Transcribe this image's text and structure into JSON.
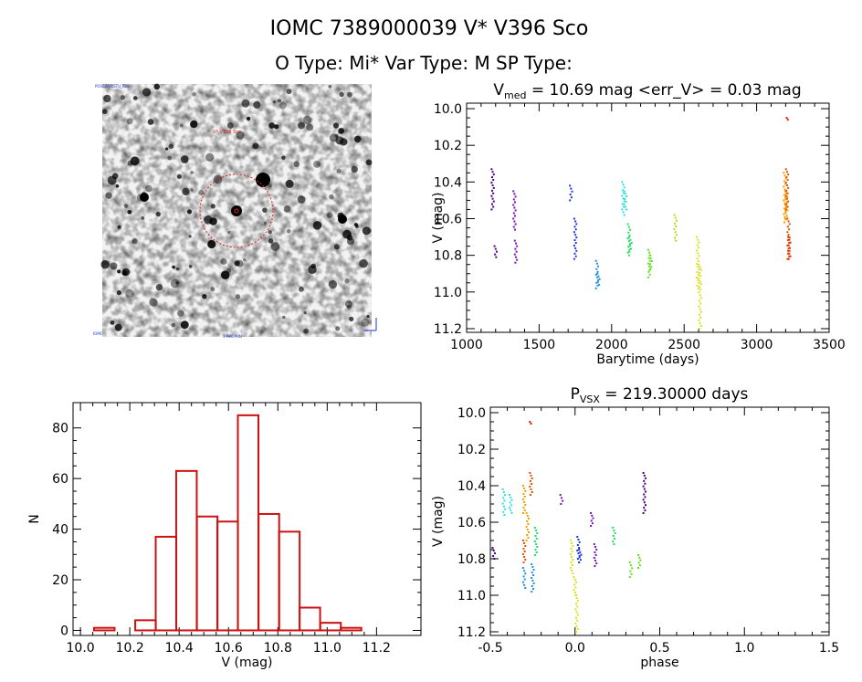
{
  "header": {
    "title_line1": "IOMC 7389000039    V* V396 Sco",
    "title_line2": "O Type: Mi*  Var Type: M  SP Type:"
  },
  "image_panel": {
    "labels": [
      "POSS2/UKSTU_Red",
      "V* V396 Sco",
      "IOMC",
      "1 ARC MIN"
    ]
  },
  "chart_data": [
    {
      "id": "lightcurve",
      "type": "scatter",
      "title_parts": {
        "main": "V",
        "sub": "med",
        "rest": " = 10.69 mag <err_V> = 0.03 mag"
      },
      "xlabel": "Barytime (days)",
      "ylabel": "V (mag)",
      "xlim": [
        1000,
        3500
      ],
      "ylim": [
        11.22,
        9.97
      ],
      "xticks": [
        1000,
        1500,
        2000,
        2500,
        3000,
        3500
      ],
      "yticks": [
        10.0,
        10.2,
        10.4,
        10.6,
        10.8,
        11.0,
        11.2
      ],
      "series": [
        {
          "name": "g1",
          "color": "#4b0082",
          "x": [
            1180,
            1200
          ],
          "ymin": [
            10.33,
            10.75
          ],
          "ymax": [
            10.55,
            10.81
          ]
        },
        {
          "name": "g2",
          "color": "#7a16b8",
          "x": [
            1330,
            1340
          ],
          "ymin": [
            10.45,
            10.72
          ],
          "ymax": [
            10.66,
            10.84
          ]
        },
        {
          "name": "g3",
          "color": "#2238d8",
          "x": [
            1720,
            1750
          ],
          "ymin": [
            10.42,
            10.6
          ],
          "ymax": [
            10.5,
            10.82
          ]
        },
        {
          "name": "g4",
          "color": "#1f8fe0",
          "x": [
            1900,
            1910
          ],
          "ymin": [
            10.83,
            10.9
          ],
          "ymax": [
            10.98,
            10.96
          ]
        },
        {
          "name": "g5",
          "color": "#30e0e0",
          "x": [
            2080,
            2095
          ],
          "ymin": [
            10.4,
            10.45
          ],
          "ymax": [
            10.58,
            10.55
          ]
        },
        {
          "name": "g6",
          "color": "#22dd66",
          "x": [
            2120,
            2130
          ],
          "ymin": [
            10.63,
            10.7
          ],
          "ymax": [
            10.8,
            10.78
          ]
        },
        {
          "name": "g7",
          "color": "#66dd22",
          "x": [
            2260,
            2270
          ],
          "ymin": [
            10.77,
            10.8
          ],
          "ymax": [
            10.92,
            10.88
          ]
        },
        {
          "name": "g8",
          "color": "#a8dd22",
          "x": [
            2440
          ],
          "ymin": [
            10.58
          ],
          "ymax": [
            10.72
          ]
        },
        {
          "name": "g9",
          "color": "#d8e020",
          "x": [
            2595,
            2610
          ],
          "ymin": [
            10.7,
            10.85
          ],
          "ymax": [
            10.98,
            11.2
          ]
        },
        {
          "name": "g10",
          "color": "#f0a000",
          "x": [
            3195,
            3205
          ],
          "ymin": [
            10.35,
            10.45
          ],
          "ymax": [
            10.62,
            10.6
          ]
        },
        {
          "name": "g11",
          "color": "#e05000",
          "x": [
            3210,
            3220
          ],
          "ymin": [
            10.33,
            10.6
          ],
          "ymax": [
            10.55,
            10.82
          ]
        },
        {
          "name": "g12",
          "color": "#dd2200",
          "x": [
            3215,
            3225
          ],
          "ymin": [
            10.05,
            10.7
          ],
          "ymax": [
            10.06,
            10.82
          ]
        }
      ]
    },
    {
      "id": "histogram",
      "type": "bar",
      "title": "",
      "xlabel": "V (mag)",
      "ylabel": "N",
      "xlim": [
        9.97,
        11.38
      ],
      "ylim": [
        -2,
        90
      ],
      "xticks": [
        10.0,
        10.2,
        10.4,
        10.6,
        10.8,
        11.0,
        11.2
      ],
      "yticks": [
        0,
        20,
        40,
        60,
        80
      ],
      "bin_width": 0.0833,
      "bin_starts": [
        10.055,
        10.138,
        10.222,
        10.305,
        10.388,
        10.472,
        10.555,
        10.638,
        10.722,
        10.805,
        10.888,
        10.972,
        11.055,
        11.138,
        11.222
      ],
      "values": [
        1,
        0,
        4,
        37,
        63,
        45,
        43,
        85,
        46,
        39,
        9,
        3,
        1,
        0,
        0
      ],
      "color": "#cc1111"
    },
    {
      "id": "phased",
      "type": "scatter",
      "title_parts": {
        "main": "P",
        "sub": "VSX",
        "rest": " = 219.30000 days"
      },
      "xlabel": "phase",
      "ylabel": "V (mag)",
      "xlim": [
        -0.5,
        1.5
      ],
      "ylim": [
        11.22,
        9.97
      ],
      "xticks": [
        -0.5,
        0.0,
        0.5,
        1.0,
        1.5
      ],
      "yticks": [
        10.0,
        10.2,
        10.4,
        10.6,
        10.8,
        11.0,
        11.2
      ],
      "series": [
        {
          "name": "p1",
          "color": "#4b0082",
          "x": [
            -0.48,
            0.41
          ],
          "ymin": [
            10.74,
            10.33
          ],
          "ymax": [
            10.8,
            10.55
          ]
        },
        {
          "name": "p2",
          "color": "#7a16b8",
          "x": [
            -0.08,
            0.12,
            0.1
          ],
          "ymin": [
            10.45,
            10.72,
            10.55
          ],
          "ymax": [
            10.5,
            10.84,
            10.62
          ]
        },
        {
          "name": "p3",
          "color": "#2238d8",
          "x": [
            0.02,
            0.03
          ],
          "ymin": [
            10.68,
            10.75
          ],
          "ymax": [
            10.8,
            10.82
          ]
        },
        {
          "name": "p4",
          "color": "#1f8fe0",
          "x": [
            -0.25,
            -0.3
          ],
          "ymin": [
            10.83,
            10.85
          ],
          "ymax": [
            10.98,
            10.96
          ]
        },
        {
          "name": "p5",
          "color": "#30e0e0",
          "x": [
            -0.42,
            -0.38
          ],
          "ymin": [
            10.42,
            10.45
          ],
          "ymax": [
            10.56,
            10.55
          ]
        },
        {
          "name": "p6",
          "color": "#22dd66",
          "x": [
            -0.23,
            0.23
          ],
          "ymin": [
            10.63,
            10.63
          ],
          "ymax": [
            10.78,
            10.72
          ]
        },
        {
          "name": "p7",
          "color": "#66dd22",
          "x": [
            0.33,
            0.38
          ],
          "ymin": [
            10.82,
            10.78
          ],
          "ymax": [
            10.9,
            10.85
          ]
        },
        {
          "name": "p8",
          "color": "#d8e020",
          "x": [
            -0.02,
            0.0,
            0.01
          ],
          "ymin": [
            10.7,
            10.9,
            11.0
          ],
          "ymax": [
            10.88,
            11.0,
            11.2
          ]
        },
        {
          "name": "p9",
          "color": "#f0a000",
          "x": [
            -0.3,
            -0.28
          ],
          "ymin": [
            10.4,
            10.55
          ],
          "ymax": [
            10.55,
            10.7
          ]
        },
        {
          "name": "p10",
          "color": "#e05000",
          "x": [
            -0.26,
            -0.3
          ],
          "ymin": [
            10.33,
            10.7
          ],
          "ymax": [
            10.45,
            10.82
          ]
        },
        {
          "name": "p11",
          "color": "#dd2200",
          "x": [
            -0.26
          ],
          "ymin": [
            10.05
          ],
          "ymax": [
            10.06
          ]
        }
      ]
    }
  ]
}
